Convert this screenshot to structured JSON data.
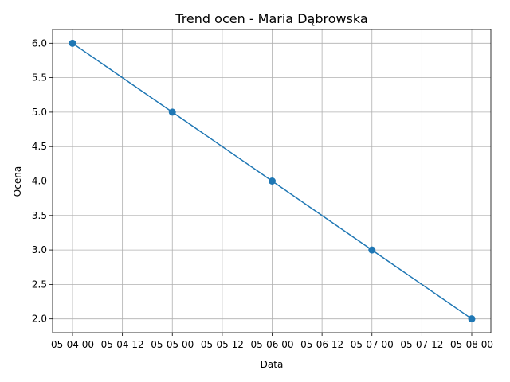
{
  "chart_data": {
    "type": "line",
    "title": "Trend ocen - Maria Dąbrowska",
    "xlabel": "Data",
    "ylabel": "Ocena",
    "x_tick_labels": [
      "05-04 00",
      "05-04 12",
      "05-05 00",
      "05-05 12",
      "05-06 00",
      "05-06 12",
      "05-07 00",
      "05-07 12",
      "05-08 00"
    ],
    "y_tick_labels": [
      "2.0",
      "2.5",
      "3.0",
      "3.5",
      "4.0",
      "4.5",
      "5.0",
      "5.5",
      "6.0"
    ],
    "x": [
      "05-04",
      "05-05",
      "05-06",
      "05-07",
      "05-08"
    ],
    "y": [
      6.0,
      5.0,
      4.0,
      3.0,
      2.0
    ],
    "ylim": [
      1.8,
      6.2
    ],
    "grid": true,
    "marker": "circle",
    "colors": {
      "series": "#1f77b4"
    }
  }
}
